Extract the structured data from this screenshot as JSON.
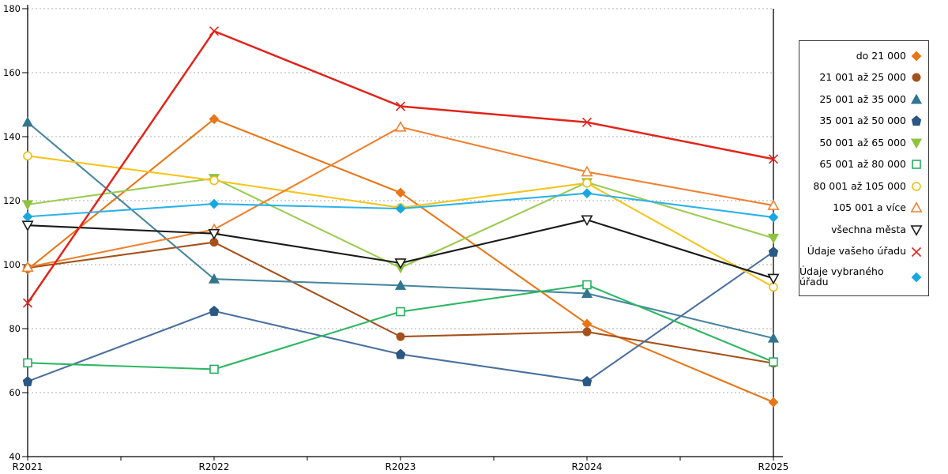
{
  "chart_data": {
    "type": "line",
    "title": "",
    "xlabel": "",
    "ylabel": "",
    "categories": [
      "R2021",
      "R2022",
      "R2023",
      "R2024",
      "R2025"
    ],
    "ylim": [
      40,
      180
    ],
    "yticks": [
      40,
      60,
      80,
      100,
      120,
      140,
      160,
      180
    ],
    "grid": "horizontal-dashed",
    "grid_color": "#adadad",
    "axis_color": "#000000",
    "legend_position": "right-box",
    "series": [
      {
        "name": "do 21 000",
        "marker": "diamond",
        "open": false,
        "color": "#e87617",
        "line_color": "#e87617",
        "values": [
          98.5,
          145.5,
          122.5,
          81.5,
          57
        ]
      },
      {
        "name": "21 001 až 25 000",
        "marker": "circle",
        "open": false,
        "color": "#a5511b",
        "line_color": "#a5511b",
        "values": [
          99,
          107,
          77.5,
          79,
          69.2
        ]
      },
      {
        "name": "25 001 až 35 000",
        "marker": "triangle-up",
        "open": false,
        "color": "#31768e",
        "line_color": "#4886a0",
        "values": [
          144.5,
          95.5,
          93.5,
          91,
          77
        ]
      },
      {
        "name": "35 001 až 50 000",
        "marker": "pentagon",
        "open": false,
        "color": "#2a5783",
        "line_color": "#4a6f9e",
        "values": [
          63.5,
          85.5,
          72,
          63.5,
          104
        ]
      },
      {
        "name": "50 001 až 65 000",
        "marker": "triangle-down",
        "open": false,
        "color": "#8fc33f",
        "line_color": "#9ccb52",
        "values": [
          118.8,
          127,
          99,
          125.7,
          108.3
        ]
      },
      {
        "name": "65 001 až 80 000",
        "marker": "square",
        "open": true,
        "color": "#28ad60",
        "line_color": "#2db764",
        "values": [
          69.3,
          67.3,
          85.3,
          93.7,
          69.6
        ]
      },
      {
        "name": "80 001 až 105 000",
        "marker": "circle",
        "open": true,
        "color": "#f0be13",
        "line_color": "#f4c51d",
        "values": [
          134,
          126.3,
          117.8,
          125.5,
          93
        ]
      },
      {
        "name": "105 001 a více",
        "marker": "triangle-up",
        "open": true,
        "color": "#f08130",
        "line_color": "#f08130",
        "values": [
          99.2,
          111,
          143,
          129,
          118.5
        ]
      },
      {
        "name": "všechna města",
        "marker": "triangle-down",
        "open": true,
        "color": "#1a1a1a",
        "line_color": "#1a1a1a",
        "values": [
          112.3,
          109.7,
          100.5,
          114,
          95.7
        ]
      },
      {
        "name": "Údaje vašeho úřadu",
        "marker": "x",
        "open": true,
        "color": "#e2231a",
        "line_color": "#e2231a",
        "values": [
          88,
          173,
          149.5,
          144.5,
          133
        ]
      },
      {
        "name": "Údaje vybraného úřadu",
        "marker": "diamond",
        "open": false,
        "color": "#17a8e3",
        "line_color": "#2cb2e8",
        "values": [
          115,
          119,
          117.5,
          122.3,
          114.8
        ]
      }
    ]
  }
}
